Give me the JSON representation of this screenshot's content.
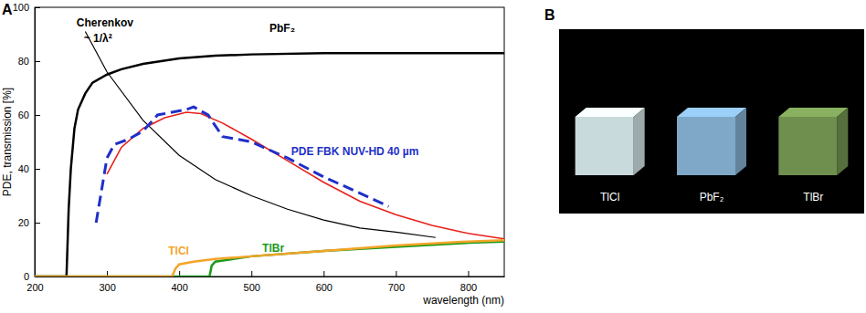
{
  "chart_data": {
    "type": "line",
    "title": "A",
    "x_label": "wavelength (nm)",
    "y_label": "PDE, transmission [%]",
    "xlim": [
      200,
      850
    ],
    "xticks": [
      200,
      300,
      400,
      500,
      600,
      700,
      800
    ],
    "ylim": [
      0,
      100
    ],
    "yticks": [
      0,
      20,
      40,
      60,
      80,
      100
    ],
    "grid": false,
    "series": [
      {
        "color": "#000000",
        "line_style": "solid",
        "x": [
          200,
          244,
          247,
          250,
          255,
          260,
          270,
          280,
          300,
          320,
          350,
          400,
          450,
          500,
          600,
          700,
          850
        ],
        "values": [
          0,
          0,
          25,
          40,
          55,
          62,
          68,
          72,
          75,
          77,
          79,
          81,
          82,
          82.5,
          83,
          83,
          83
        ]
      },
      {
        "color": "#000000",
        "line_style": "thin",
        "x": [
          270,
          300,
          350,
          400,
          450,
          500,
          550,
          600,
          650,
          700,
          755
        ],
        "values": [
          91,
          76,
          58,
          45,
          36,
          30,
          25,
          21,
          18,
          16.5,
          14.5
        ]
      },
      {
        "color": "#e8201a",
        "line_style": "solid",
        "x": [
          300,
          320,
          350,
          380,
          410,
          430,
          460,
          500,
          550,
          600,
          650,
          700,
          750,
          800,
          850
        ],
        "values": [
          38,
          48,
          55,
          59,
          61,
          60.5,
          57,
          51,
          43,
          35,
          28,
          23,
          19,
          16,
          14
        ]
      },
      {
        "color": "#1f2fc8",
        "line_style": "dashed",
        "x": [
          285,
          300,
          310,
          330,
          350,
          370,
          390,
          410,
          420,
          440,
          450,
          460,
          480,
          500,
          550,
          600,
          650,
          690
        ],
        "values": [
          20,
          44,
          49,
          51,
          54,
          60,
          61,
          62,
          63,
          60,
          56,
          52,
          51,
          50,
          44,
          37,
          31,
          26
        ]
      },
      {
        "color": "#1a9a1a",
        "line_style": "solid",
        "x": [
          200,
          442,
          445,
          450,
          500,
          600,
          700,
          800,
          850
        ],
        "values": [
          0,
          0,
          4,
          5.5,
          7.5,
          9.5,
          11,
          12.5,
          13
        ]
      },
      {
        "color": "#f4a428",
        "line_style": "solid",
        "x": [
          200,
          390,
          395,
          400,
          420,
          450,
          500,
          600,
          700,
          800,
          850
        ],
        "values": [
          0,
          0,
          3,
          4.5,
          5.5,
          6.5,
          7.5,
          9.5,
          11.5,
          13,
          13.5
        ]
      }
    ],
    "annotations": [
      {
        "text": "Cherenkov",
        "x": 258,
        "y": 93,
        "color": "#000000"
      },
      {
        "text": "~ 1/λ²",
        "x": 268,
        "y": 87,
        "color": "#000000"
      },
      {
        "text": "PbF₂",
        "x": 525,
        "y": 91,
        "color": "#000000"
      },
      {
        "text": "PDE FBK NUV-HD 40 µm",
        "x": 555,
        "y": 45,
        "color": "#1f2fc8"
      },
      {
        "text": "TlCl",
        "x": 385,
        "y": 8,
        "color": "#f4a428"
      },
      {
        "text": "TlBr",
        "x": 515,
        "y": 9,
        "color": "#1a9a1a"
      }
    ]
  },
  "photo": {
    "title": "B",
    "crystals": [
      {
        "label": "TlCl",
        "color": "#c9dadd"
      },
      {
        "label": "PbF₂",
        "color": "#7fa8c8"
      },
      {
        "label": "TlBr",
        "color": "#6f8f4e"
      }
    ]
  }
}
